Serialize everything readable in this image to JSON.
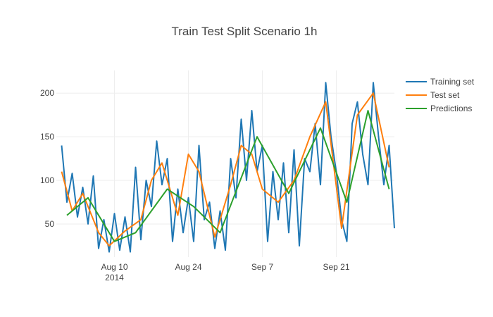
{
  "chart_data": {
    "type": "line",
    "title": "Train Test Split Scenario 1h",
    "xlabel": "",
    "ylabel": "",
    "x_range": [
      "2014-07-30",
      "2014-10-02"
    ],
    "ylim": [
      12,
      226
    ],
    "x_ticks": [
      {
        "date": "2014-08-10",
        "label": "Aug 10",
        "sublabel": "2014"
      },
      {
        "date": "2014-08-24",
        "label": "Aug 24",
        "sublabel": ""
      },
      {
        "date": "2014-09-07",
        "label": "Sep 7",
        "sublabel": ""
      },
      {
        "date": "2014-09-21",
        "label": "Sep 21",
        "sublabel": ""
      }
    ],
    "y_ticks": [
      50,
      100,
      150,
      200
    ],
    "grid": true,
    "legend_position": "top-right",
    "series": [
      {
        "name": "Training set",
        "color": "#1f77b4",
        "points": [
          [
            "2014-07-31",
            140
          ],
          [
            "2014-08-01",
            75
          ],
          [
            "2014-08-02",
            108
          ],
          [
            "2014-08-03",
            58
          ],
          [
            "2014-08-04",
            92
          ],
          [
            "2014-08-05",
            50
          ],
          [
            "2014-08-06",
            105
          ],
          [
            "2014-08-07",
            22
          ],
          [
            "2014-08-08",
            55
          ],
          [
            "2014-08-09",
            18
          ],
          [
            "2014-08-10",
            62
          ],
          [
            "2014-08-11",
            20
          ],
          [
            "2014-08-12",
            58
          ],
          [
            "2014-08-13",
            18
          ],
          [
            "2014-08-14",
            115
          ],
          [
            "2014-08-15",
            32
          ],
          [
            "2014-08-16",
            100
          ],
          [
            "2014-08-17",
            70
          ],
          [
            "2014-08-18",
            145
          ],
          [
            "2014-08-19",
            95
          ],
          [
            "2014-08-20",
            125
          ],
          [
            "2014-08-21",
            30
          ],
          [
            "2014-08-22",
            90
          ],
          [
            "2014-08-23",
            40
          ],
          [
            "2014-08-24",
            80
          ],
          [
            "2014-08-25",
            30
          ],
          [
            "2014-08-26",
            140
          ],
          [
            "2014-08-27",
            55
          ],
          [
            "2014-08-28",
            75
          ],
          [
            "2014-08-29",
            22
          ],
          [
            "2014-08-30",
            65
          ],
          [
            "2014-08-31",
            20
          ],
          [
            "2014-09-01",
            125
          ],
          [
            "2014-09-02",
            80
          ],
          [
            "2014-09-03",
            170
          ],
          [
            "2014-09-04",
            100
          ],
          [
            "2014-09-05",
            180
          ],
          [
            "2014-09-06",
            110
          ],
          [
            "2014-09-07",
            140
          ],
          [
            "2014-09-08",
            30
          ],
          [
            "2014-09-09",
            110
          ],
          [
            "2014-09-10",
            55
          ],
          [
            "2014-09-11",
            120
          ],
          [
            "2014-09-12",
            40
          ],
          [
            "2014-09-13",
            135
          ],
          [
            "2014-09-14",
            25
          ],
          [
            "2014-09-15",
            125
          ],
          [
            "2014-09-16",
            110
          ],
          [
            "2014-09-17",
            165
          ],
          [
            "2014-09-18",
            95
          ],
          [
            "2014-09-19",
            212
          ],
          [
            "2014-09-20",
            150
          ],
          [
            "2014-09-21",
            110
          ],
          [
            "2014-09-22",
            55
          ],
          [
            "2014-09-23",
            30
          ],
          [
            "2014-09-24",
            165
          ],
          [
            "2014-09-25",
            190
          ],
          [
            "2014-09-26",
            130
          ],
          [
            "2014-09-27",
            95
          ],
          [
            "2014-09-28",
            212
          ],
          [
            "2014-09-29",
            150
          ],
          [
            "2014-09-30",
            95
          ],
          [
            "2014-10-01",
            140
          ],
          [
            "2014-10-02",
            45
          ]
        ]
      },
      {
        "name": "Test set",
        "color": "#ff7f0e",
        "points": [
          [
            "2014-07-31",
            110
          ],
          [
            "2014-08-02",
            65
          ],
          [
            "2014-08-04",
            85
          ],
          [
            "2014-08-07",
            40
          ],
          [
            "2014-08-09",
            25
          ],
          [
            "2014-08-12",
            42
          ],
          [
            "2014-08-15",
            55
          ],
          [
            "2014-08-17",
            100
          ],
          [
            "2014-08-19",
            120
          ],
          [
            "2014-08-22",
            60
          ],
          [
            "2014-08-24",
            130
          ],
          [
            "2014-08-26",
            110
          ],
          [
            "2014-08-29",
            35
          ],
          [
            "2014-09-01",
            95
          ],
          [
            "2014-09-03",
            140
          ],
          [
            "2014-09-05",
            130
          ],
          [
            "2014-09-07",
            90
          ],
          [
            "2014-09-10",
            75
          ],
          [
            "2014-09-13",
            100
          ],
          [
            "2014-09-16",
            150
          ],
          [
            "2014-09-19",
            190
          ],
          [
            "2014-09-22",
            45
          ],
          [
            "2014-09-25",
            175
          ],
          [
            "2014-09-28",
            200
          ],
          [
            "2014-10-01",
            115
          ]
        ]
      },
      {
        "name": "Predictions",
        "color": "#2ca02c",
        "points": [
          [
            "2014-08-01",
            60
          ],
          [
            "2014-08-05",
            80
          ],
          [
            "2014-08-10",
            30
          ],
          [
            "2014-08-14",
            40
          ],
          [
            "2014-08-20",
            90
          ],
          [
            "2014-08-25",
            70
          ],
          [
            "2014-08-30",
            40
          ],
          [
            "2014-09-06",
            150
          ],
          [
            "2014-09-12",
            85
          ],
          [
            "2014-09-18",
            160
          ],
          [
            "2014-09-23",
            75
          ],
          [
            "2014-09-27",
            180
          ],
          [
            "2014-10-01",
            90
          ]
        ]
      }
    ]
  }
}
